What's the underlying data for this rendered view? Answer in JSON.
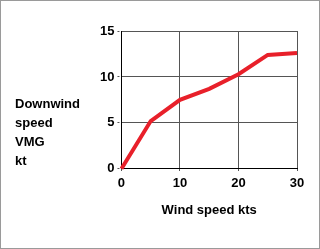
{
  "chart_data": {
    "type": "line",
    "xlabel": "Wind speed kts",
    "ylabel": "Downwind speed VMG kt",
    "x": [
      0,
      5,
      10,
      15,
      20,
      25,
      30
    ],
    "values": [
      0,
      5.2,
      7.5,
      8.7,
      10.3,
      12.4,
      12.6
    ],
    "color": "#e8202a",
    "xlim": [
      0,
      30
    ],
    "xticks": [
      0,
      10,
      20,
      30
    ],
    "ylim": [
      0,
      15
    ],
    "yticks": [
      0,
      5,
      10,
      15
    ],
    "grid": true
  }
}
